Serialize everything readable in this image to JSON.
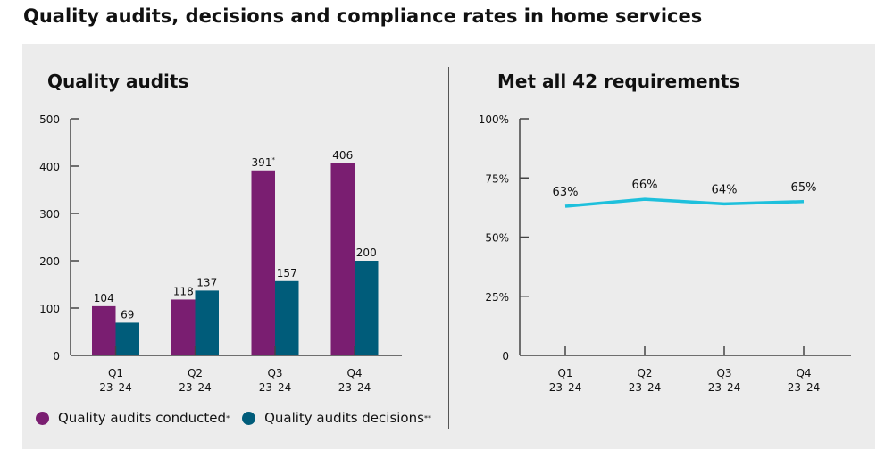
{
  "title": "Quality audits, decisions and compliance rates in home services",
  "chart_data": [
    {
      "type": "bar",
      "title": "Quality audits",
      "categories": [
        "Q1\n23–24",
        "Q2\n23–24",
        "Q3\n23–24",
        "Q4\n23–24"
      ],
      "category_lines": [
        [
          "Q1",
          "23–24"
        ],
        [
          "Q2",
          "23–24"
        ],
        [
          "Q3",
          "23–24"
        ],
        [
          "Q4",
          "23–24"
        ]
      ],
      "series": [
        {
          "name": "Quality audits conducted",
          "name_note": "*",
          "color": "#7a1e71",
          "values": [
            104,
            118,
            391,
            406
          ],
          "labels": [
            "104",
            "118",
            "391",
            "406"
          ],
          "label_notes": [
            "",
            "",
            "*",
            ""
          ]
        },
        {
          "name": "Quality audits decisions",
          "name_note": "**",
          "color": "#005c7a",
          "values": [
            69,
            137,
            157,
            200
          ],
          "labels": [
            "69",
            "137",
            "157",
            "200"
          ]
        }
      ],
      "yticks": [
        "0",
        "100",
        "200",
        "300",
        "400",
        "500"
      ],
      "ylim": [
        0,
        500
      ],
      "legend": "bottom",
      "grid": false
    },
    {
      "type": "line",
      "title": "Met all 42 requirements",
      "categories": [
        "Q1\n23–24",
        "Q2\n23–24",
        "Q3\n23–24",
        "Q4\n23–24"
      ],
      "category_lines": [
        [
          "Q1",
          "23–24"
        ],
        [
          "Q2",
          "23–24"
        ],
        [
          "Q3",
          "23–24"
        ],
        [
          "Q4",
          "23–24"
        ]
      ],
      "values": [
        63,
        66,
        64,
        65
      ],
      "labels": [
        "63%",
        "66%",
        "64%",
        "65%"
      ],
      "color": "#1ec0dc",
      "yticks": [
        "0",
        "25%",
        "50%",
        "75%",
        "100%"
      ],
      "ylim": [
        0,
        100
      ],
      "grid": false
    }
  ]
}
